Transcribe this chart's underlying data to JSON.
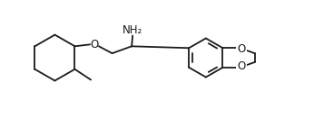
{
  "bg_color": "#ffffff",
  "line_color": "#1a1a1a",
  "line_width": 1.3,
  "nh2_label": "NH₂",
  "o_label1": "O",
  "o_label2": "O",
  "o_label3": "O",
  "font_size": 8.5
}
